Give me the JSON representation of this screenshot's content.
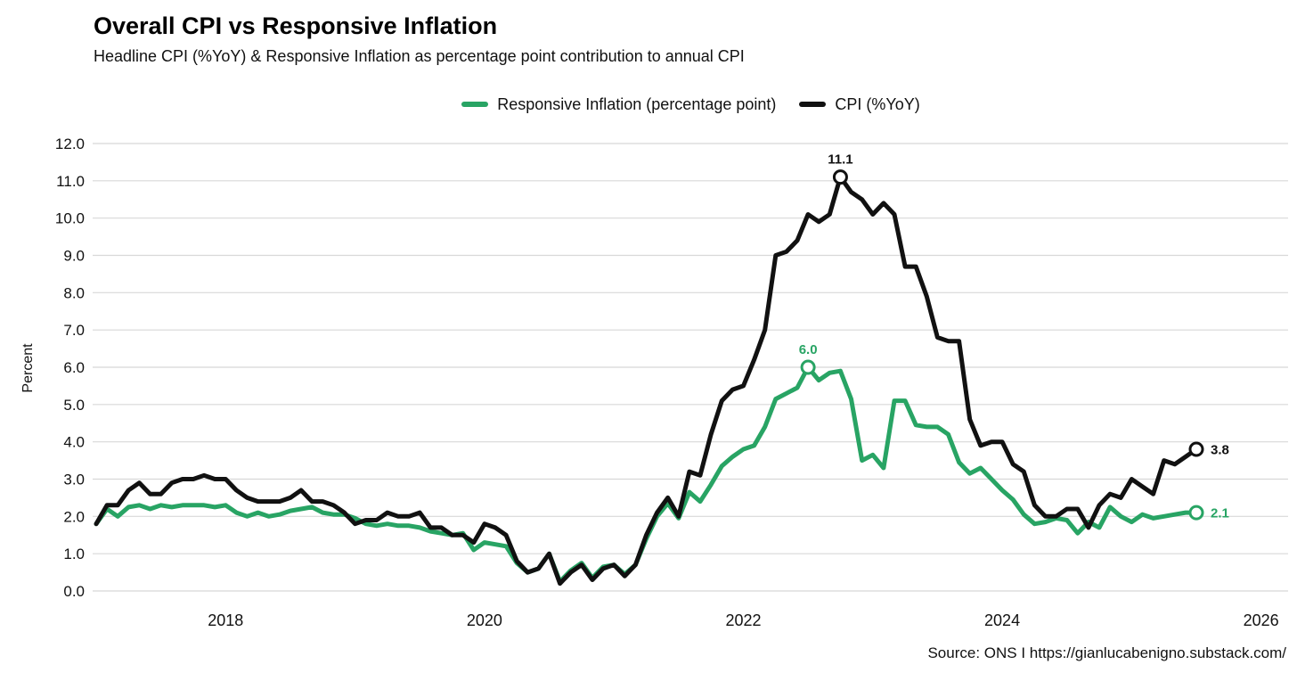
{
  "header": {
    "title": "Overall CPI vs Responsive Inflation",
    "subtitle": "Headline CPI (%YoY) & Responsive Inflation as percentage point contribution to annual CPI"
  },
  "legend": [
    {
      "label": "Responsive Inflation (percentage point)",
      "color": "#28a464"
    },
    {
      "label": "CPI (%YoY)",
      "color": "#111111"
    }
  ],
  "axes": {
    "y_title": "Percent",
    "y_ticks": [
      "0.0",
      "1.0",
      "2.0",
      "3.0",
      "4.0",
      "5.0",
      "6.0",
      "7.0",
      "8.0",
      "9.0",
      "10.0",
      "11.0",
      "12.0"
    ],
    "x_ticks": [
      "2018",
      "2020",
      "2022",
      "2024",
      "2026"
    ]
  },
  "footer": {
    "source": "Source: ONS I  https://gianlucabenigno.substack.com/"
  },
  "colors": {
    "grid": "#d8d8d8",
    "tick_text": "#111111",
    "background": "#ffffff"
  },
  "chart_data": {
    "type": "line",
    "title": "Overall CPI vs Responsive Inflation",
    "subtitle": "Headline CPI (%YoY) & Responsive Inflation as percentage point contribution to annual CPI",
    "xlabel": "",
    "ylabel": "Percent",
    "ylim": [
      0,
      12
    ],
    "grid": true,
    "legend_position": "top",
    "x_start": "2017-01",
    "x_end": "2025-07",
    "x_frequency": "monthly",
    "x_tick_labels": [
      "2018",
      "2020",
      "2022",
      "2024",
      "2026"
    ],
    "series": [
      {
        "name": "Responsive Inflation (percentage point)",
        "color": "#28a464",
        "values": [
          1.8,
          2.2,
          2.0,
          2.25,
          2.3,
          2.2,
          2.3,
          2.25,
          2.3,
          2.3,
          2.3,
          2.25,
          2.3,
          2.1,
          2.0,
          2.1,
          2.0,
          2.05,
          2.15,
          2.2,
          2.25,
          2.1,
          2.05,
          2.05,
          1.95,
          1.8,
          1.75,
          1.8,
          1.75,
          1.75,
          1.7,
          1.6,
          1.55,
          1.5,
          1.55,
          1.1,
          1.3,
          1.25,
          1.2,
          0.75,
          0.5,
          0.6,
          1.0,
          0.25,
          0.55,
          0.75,
          0.35,
          0.65,
          0.7,
          0.45,
          0.7,
          1.4,
          2.0,
          2.35,
          1.95,
          2.65,
          2.4,
          2.85,
          3.35,
          3.6,
          3.8,
          3.9,
          4.4,
          5.15,
          5.3,
          5.45,
          6.0,
          5.65,
          5.85,
          5.9,
          5.15,
          3.5,
          3.65,
          3.3,
          5.1,
          5.1,
          4.45,
          4.4,
          4.4,
          4.2,
          3.45,
          3.15,
          3.3,
          3.0,
          2.7,
          2.45,
          2.05,
          1.8,
          1.85,
          1.95,
          1.9,
          1.55,
          1.85,
          1.7,
          2.25,
          2.0,
          1.85,
          2.05,
          1.95,
          2.0,
          2.05,
          2.1,
          2.1
        ]
      },
      {
        "name": "CPI (%YoY)",
        "color": "#111111",
        "values": [
          1.8,
          2.3,
          2.3,
          2.7,
          2.9,
          2.6,
          2.6,
          2.9,
          3.0,
          3.0,
          3.1,
          3.0,
          3.0,
          2.7,
          2.5,
          2.4,
          2.4,
          2.4,
          2.5,
          2.7,
          2.4,
          2.4,
          2.3,
          2.1,
          1.8,
          1.9,
          1.9,
          2.1,
          2.0,
          2.0,
          2.1,
          1.7,
          1.7,
          1.5,
          1.5,
          1.3,
          1.8,
          1.7,
          1.5,
          0.8,
          0.5,
          0.6,
          1.0,
          0.2,
          0.5,
          0.7,
          0.3,
          0.6,
          0.7,
          0.4,
          0.7,
          1.5,
          2.1,
          2.5,
          2.0,
          3.2,
          3.1,
          4.2,
          5.1,
          5.4,
          5.5,
          6.2,
          7.0,
          9.0,
          9.1,
          9.4,
          10.1,
          9.9,
          10.1,
          11.1,
          10.7,
          10.5,
          10.1,
          10.4,
          10.1,
          8.7,
          8.7,
          7.9,
          6.8,
          6.7,
          6.7,
          4.6,
          3.9,
          4.0,
          4.0,
          3.4,
          3.2,
          2.3,
          2.0,
          2.0,
          2.2,
          2.2,
          1.7,
          2.3,
          2.6,
          2.5,
          3.0,
          2.8,
          2.6,
          3.5,
          3.4,
          3.6,
          3.8
        ]
      }
    ],
    "annotations": [
      {
        "series": 1,
        "index": 69,
        "label": "11.1",
        "placement": "above"
      },
      {
        "series": 0,
        "index": 66,
        "label": "6.0",
        "placement": "above"
      },
      {
        "series": 1,
        "index": 102,
        "label": "3.8",
        "placement": "right"
      },
      {
        "series": 0,
        "index": 102,
        "label": "2.1",
        "placement": "right"
      }
    ]
  }
}
